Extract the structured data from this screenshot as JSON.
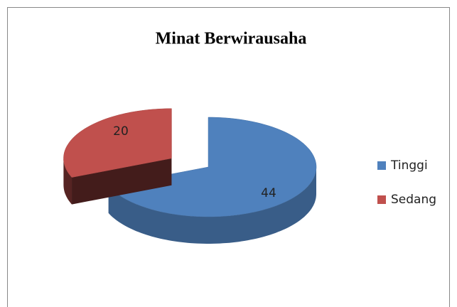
{
  "chart_data": {
    "type": "pie3d",
    "title": "Minat Berwirausaha",
    "categories": [
      "Tinggi",
      "Sedang"
    ],
    "values": [
      44,
      20
    ],
    "colors": [
      "#4f81bd",
      "#c0504d"
    ],
    "legend": "right"
  }
}
